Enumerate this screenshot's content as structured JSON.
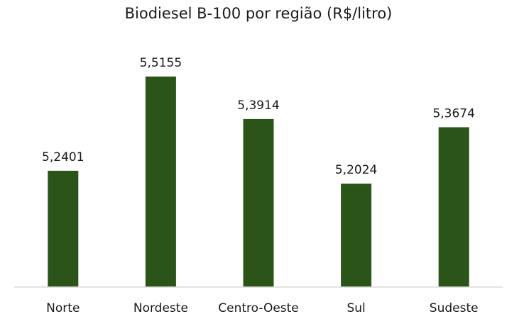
{
  "chart_data": {
    "type": "bar",
    "title": "Biodiesel B-100 por região (R$/litro)",
    "categories": [
      "Norte",
      "Nordeste",
      "Centro-Oeste",
      "Sul",
      "Sudeste"
    ],
    "values": [
      5.2401,
      5.5155,
      5.3914,
      5.2024,
      5.3674
    ],
    "data_labels": [
      "5,2401",
      "5,5155",
      "5,3914",
      "5,2024",
      "5,3674"
    ],
    "xlabel": "",
    "ylabel": "",
    "ylim": [
      4.9,
      5.6
    ],
    "grid": false,
    "legend": "none",
    "bar_color": "#2a5418",
    "axis_color": "#d9d9d9"
  }
}
